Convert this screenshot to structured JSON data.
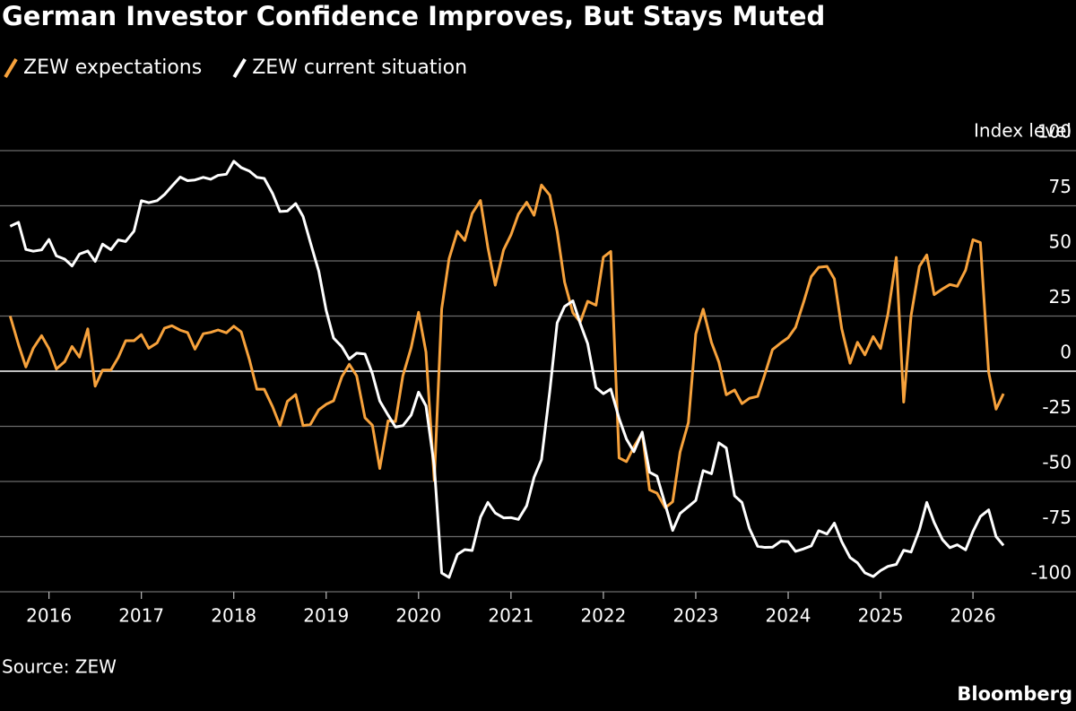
{
  "chart_data": {
    "type": "line",
    "title": "German Investor Confidence Improves, But Stays Muted",
    "y_label": "Index level",
    "source": "Source: ZEW",
    "credit": "Bloomberg",
    "xlim": [
      2015.47,
      2026.95
    ],
    "xticks": [
      2016,
      2017,
      2018,
      2019,
      2020,
      2021,
      2022,
      2023,
      2024,
      2025,
      2026
    ],
    "ylim": [
      -100,
      100
    ],
    "yticks": [
      -100,
      -75,
      -50,
      -25,
      0,
      25,
      50,
      75,
      100
    ],
    "grid": true,
    "x": [
      2015.58,
      2015.67,
      2015.75,
      2015.83,
      2015.92,
      2016.0,
      2016.08,
      2016.17,
      2016.25,
      2016.33,
      2016.42,
      2016.5,
      2016.58,
      2016.67,
      2016.75,
      2016.83,
      2016.92,
      2017.0,
      2017.08,
      2017.17,
      2017.25,
      2017.33,
      2017.42,
      2017.5,
      2017.58,
      2017.67,
      2017.75,
      2017.83,
      2017.92,
      2018.0,
      2018.08,
      2018.17,
      2018.25,
      2018.33,
      2018.42,
      2018.5,
      2018.58,
      2018.67,
      2018.75,
      2018.83,
      2018.92,
      2019.0,
      2019.08,
      2019.17,
      2019.25,
      2019.33,
      2019.42,
      2019.5,
      2019.58,
      2019.67,
      2019.75,
      2019.83,
      2019.92,
      2020.0,
      2020.08,
      2020.17,
      2020.25,
      2020.33,
      2020.42,
      2020.5,
      2020.58,
      2020.67,
      2020.75,
      2020.83,
      2020.92,
      2021.0,
      2021.08,
      2021.17,
      2021.25,
      2021.33,
      2021.42,
      2021.5,
      2021.58,
      2021.67,
      2021.75,
      2021.83,
      2021.92,
      2022.0,
      2022.08,
      2022.17,
      2022.25,
      2022.33,
      2022.42,
      2022.5,
      2022.58,
      2022.67,
      2022.75,
      2022.83,
      2022.92,
      2023.0,
      2023.08,
      2023.17,
      2023.25,
      2023.33,
      2023.42,
      2023.5,
      2023.58,
      2023.67,
      2023.75,
      2023.83,
      2023.92,
      2024.0,
      2024.08,
      2024.17,
      2024.25,
      2024.33,
      2024.42,
      2024.5,
      2024.58,
      2024.67,
      2024.75,
      2024.83,
      2024.92,
      2025.0,
      2025.08,
      2025.17,
      2025.25,
      2025.33,
      2025.42,
      2025.5,
      2025.58,
      2025.67,
      2025.75,
      2025.83,
      2025.92,
      2026.0,
      2026.08,
      2026.17,
      2026.25,
      2026.33
    ],
    "series": [
      {
        "name": "ZEW expectations",
        "color": "#f7a23c",
        "values": [
          25.0,
          12.1,
          1.9,
          10.4,
          16.1,
          10.2,
          1.0,
          4.3,
          11.2,
          6.4,
          19.2,
          -6.8,
          0.5,
          0.5,
          6.2,
          13.8,
          13.8,
          16.6,
          10.4,
          12.8,
          19.5,
          20.6,
          18.6,
          17.5,
          10.0,
          17.0,
          17.6,
          18.7,
          17.4,
          20.4,
          17.8,
          5.1,
          -8.2,
          -8.2,
          -16.1,
          -24.7,
          -13.7,
          -10.6,
          -24.7,
          -24.1,
          -17.5,
          -15.0,
          -13.4,
          -2.5,
          3.1,
          -2.1,
          -21.1,
          -24.5,
          -44.1,
          -22.5,
          -22.8,
          -2.1,
          10.7,
          26.7,
          8.7,
          -49.5,
          28.2,
          51.0,
          63.4,
          59.3,
          71.5,
          77.4,
          56.1,
          39.0,
          55.0,
          61.8,
          71.2,
          76.6,
          70.7,
          84.4,
          79.8,
          63.3,
          40.4,
          26.5,
          22.3,
          31.7,
          29.9,
          51.7,
          54.3,
          -39.3,
          -41.0,
          -34.3,
          -28.0,
          -53.8,
          -55.3,
          -61.9,
          -59.2,
          -36.7,
          -23.3,
          16.9,
          28.1,
          13.0,
          4.1,
          -10.7,
          -8.5,
          -14.7,
          -12.3,
          -11.4,
          -1.1,
          9.8,
          12.8,
          15.2,
          19.9,
          31.7,
          42.9,
          47.1,
          47.5,
          41.8,
          19.2,
          3.6,
          13.1,
          7.4,
          15.7,
          10.3,
          26.0,
          51.6,
          -14.0,
          25.2,
          47.5,
          52.7,
          34.7,
          37.3,
          39.3,
          38.5,
          45.8,
          59.6,
          58.3,
          -0.5,
          -17.2,
          -10.2
        ]
      },
      {
        "name": "ZEW current situation",
        "color": "#ffffff",
        "values": [
          65.7,
          67.5,
          55.2,
          54.4,
          55.0,
          59.7,
          52.3,
          50.8,
          47.7,
          53.1,
          54.5,
          49.8,
          57.6,
          55.1,
          59.5,
          58.8,
          63.5,
          77.3,
          76.4,
          77.3,
          80.1,
          83.9,
          88.0,
          86.4,
          86.7,
          87.9,
          87.0,
          88.8,
          89.3,
          95.2,
          92.3,
          90.7,
          87.9,
          87.4,
          80.6,
          72.4,
          72.6,
          76.0,
          70.1,
          58.2,
          45.3,
          27.6,
          15.0,
          11.1,
          5.5,
          8.2,
          7.8,
          -1.1,
          -13.5,
          -19.9,
          -25.3,
          -24.7,
          -19.9,
          -9.5,
          -15.7,
          -43.1,
          -91.5,
          -93.5,
          -83.1,
          -80.9,
          -81.3,
          -66.2,
          -59.5,
          -64.3,
          -66.5,
          -66.4,
          -67.2,
          -61.0,
          -48.1,
          -40.1,
          -9.1,
          21.9,
          29.3,
          31.9,
          21.6,
          12.5,
          -7.4,
          -10.2,
          -8.1,
          -21.4,
          -30.8,
          -36.5,
          -27.6,
          -45.8,
          -47.6,
          -60.5,
          -72.2,
          -64.5,
          -61.4,
          -58.6,
          -45.1,
          -46.5,
          -32.5,
          -34.8,
          -56.5,
          -59.5,
          -71.3,
          -79.4,
          -79.9,
          -79.8,
          -77.1,
          -77.3,
          -81.7,
          -80.5,
          -79.2,
          -72.3,
          -73.8,
          -68.9,
          -77.3,
          -84.5,
          -86.9,
          -91.4,
          -93.1,
          -90.4,
          -88.5,
          -87.6,
          -81.2,
          -82.0,
          -72.0,
          -59.5,
          -68.6,
          -76.4,
          -80.0,
          -78.7,
          -81.0,
          -72.7,
          -65.9,
          -62.9,
          -75.0,
          -79.0
        ]
      }
    ]
  }
}
